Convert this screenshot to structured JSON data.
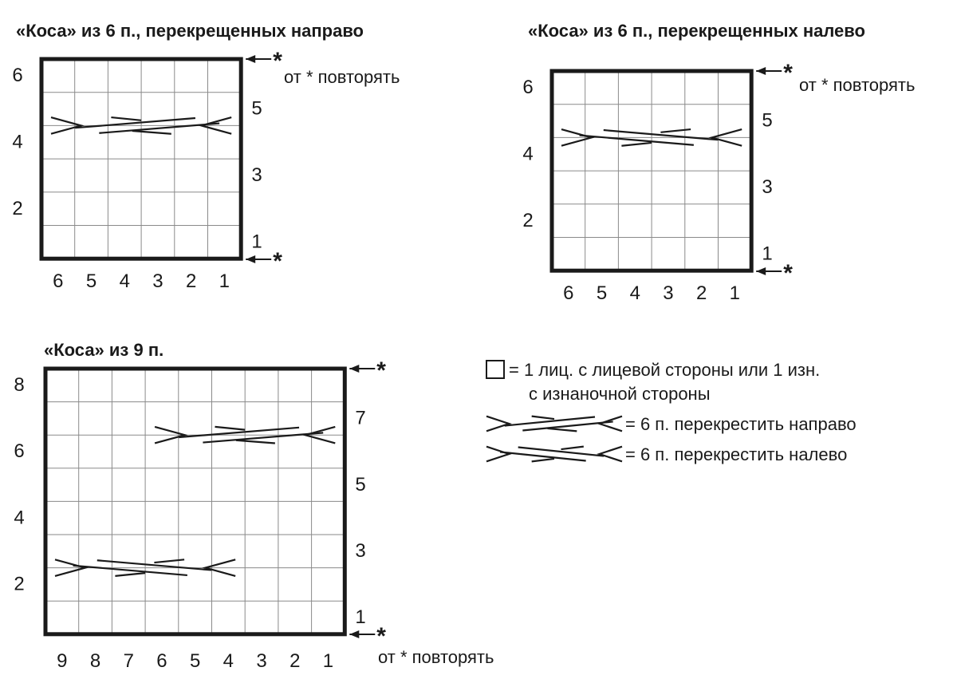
{
  "charts": [
    {
      "id": "right",
      "title": "«Коса» из 6 п., перекрещенных направо",
      "cols": 6,
      "rows": 6,
      "col_labels": [
        "6",
        "5",
        "4",
        "3",
        "2",
        "1"
      ],
      "left_row_labels": [
        "6",
        "4",
        "2"
      ],
      "right_row_labels": [
        "5",
        "3",
        "1"
      ],
      "repeat_note": "от * повторять",
      "cables": [
        {
          "type": "right",
          "row": 5,
          "col_start": 1,
          "span": 6
        }
      ]
    },
    {
      "id": "left",
      "title": "«Коса» из 6 п., перекрещенных налево",
      "cols": 6,
      "rows": 6,
      "col_labels": [
        "6",
        "5",
        "4",
        "3",
        "2",
        "1"
      ],
      "left_row_labels": [
        "6",
        "4",
        "2"
      ],
      "right_row_labels": [
        "5",
        "3",
        "1"
      ],
      "repeat_note": "от * повторять",
      "cables": [
        {
          "type": "left",
          "row": 5,
          "col_start": 1,
          "span": 6
        }
      ]
    },
    {
      "id": "nine",
      "title": "«Коса» из 9 п.",
      "cols": 9,
      "rows": 8,
      "col_labels": [
        "9",
        "8",
        "7",
        "6",
        "5",
        "4",
        "3",
        "2",
        "1"
      ],
      "left_row_labels": [
        "8",
        "6",
        "4",
        "2"
      ],
      "right_row_labels": [
        "7",
        "5",
        "3",
        "1"
      ],
      "repeat_note": "от * повторять",
      "cables": [
        {
          "type": "right",
          "row": 7,
          "col_start": 1,
          "span": 6
        },
        {
          "type": "left",
          "row": 3,
          "col_start": 4,
          "span": 6
        }
      ]
    }
  ],
  "star": "*",
  "legend": {
    "square_line1": "= 1 лиц. с лицевой стороны или 1 изн.",
    "square_line2": "с изнаночной стороны",
    "right_cross": "= 6 п. перекрестить направо",
    "left_cross": "= 6 п. перекрестить налево"
  }
}
